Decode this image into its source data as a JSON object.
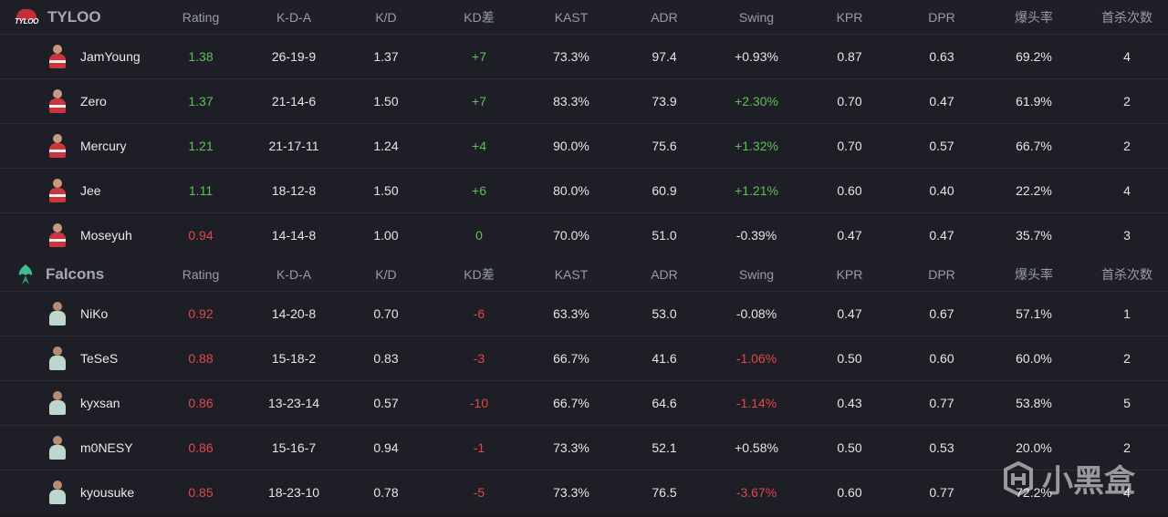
{
  "columns": [
    "Rating",
    "K-D-A",
    "K/D",
    "KD差",
    "KAST",
    "ADR",
    "Swing",
    "KPR",
    "DPR",
    "爆头率",
    "首杀次数"
  ],
  "teams": [
    {
      "name": "TYLOO",
      "logo_text": "TYLOO",
      "players": [
        {
          "name": "JamYoung",
          "rating": "1.38",
          "kda": "26-19-9",
          "kd": "1.37",
          "kddiff": "+7",
          "kast": "73.3%",
          "adr": "97.4",
          "swing": "+0.93%",
          "kpr": "0.87",
          "dpr": "0.63",
          "hs": "69.2%",
          "fk": "4"
        },
        {
          "name": "Zero",
          "rating": "1.37",
          "kda": "21-14-6",
          "kd": "1.50",
          "kddiff": "+7",
          "kast": "83.3%",
          "adr": "73.9",
          "swing": "+2.30%",
          "kpr": "0.70",
          "dpr": "0.47",
          "hs": "61.9%",
          "fk": "2"
        },
        {
          "name": "Mercury",
          "rating": "1.21",
          "kda": "21-17-11",
          "kd": "1.24",
          "kddiff": "+4",
          "kast": "90.0%",
          "adr": "75.6",
          "swing": "+1.32%",
          "kpr": "0.70",
          "dpr": "0.57",
          "hs": "66.7%",
          "fk": "2"
        },
        {
          "name": "Jee",
          "rating": "1.11",
          "kda": "18-12-8",
          "kd": "1.50",
          "kddiff": "+6",
          "kast": "80.0%",
          "adr": "60.9",
          "swing": "+1.21%",
          "kpr": "0.60",
          "dpr": "0.40",
          "hs": "22.2%",
          "fk": "4"
        },
        {
          "name": "Moseyuh",
          "rating": "0.94",
          "kda": "14-14-8",
          "kd": "1.00",
          "kddiff": "0",
          "kast": "70.0%",
          "adr": "51.0",
          "swing": "-0.39%",
          "kpr": "0.47",
          "dpr": "0.47",
          "hs": "35.7%",
          "fk": "3"
        }
      ]
    },
    {
      "name": "Falcons",
      "players": [
        {
          "name": "NiKo",
          "rating": "0.92",
          "kda": "14-20-8",
          "kd": "0.70",
          "kddiff": "-6",
          "kast": "63.3%",
          "adr": "53.0",
          "swing": "-0.08%",
          "kpr": "0.47",
          "dpr": "0.67",
          "hs": "57.1%",
          "fk": "1"
        },
        {
          "name": "TeSeS",
          "rating": "0.88",
          "kda": "15-18-2",
          "kd": "0.83",
          "kddiff": "-3",
          "kast": "66.7%",
          "adr": "41.6",
          "swing": "-1.06%",
          "kpr": "0.50",
          "dpr": "0.60",
          "hs": "60.0%",
          "fk": "2"
        },
        {
          "name": "kyxsan",
          "rating": "0.86",
          "kda": "13-23-14",
          "kd": "0.57",
          "kddiff": "-10",
          "kast": "66.7%",
          "adr": "64.6",
          "swing": "-1.14%",
          "kpr": "0.43",
          "dpr": "0.77",
          "hs": "53.8%",
          "fk": "5"
        },
        {
          "name": "m0NESY",
          "rating": "0.86",
          "kda": "15-16-7",
          "kd": "0.94",
          "kddiff": "-1",
          "kast": "73.3%",
          "adr": "52.1",
          "swing": "+0.58%",
          "kpr": "0.50",
          "dpr": "0.53",
          "hs": "20.0%",
          "fk": "2"
        },
        {
          "name": "kyousuke",
          "rating": "0.85",
          "kda": "18-23-10",
          "kd": "0.78",
          "kddiff": "-5",
          "kast": "73.3%",
          "adr": "76.5",
          "swing": "-3.67%",
          "kpr": "0.60",
          "dpr": "0.77",
          "hs": "72.2%",
          "fk": "4"
        }
      ]
    }
  ],
  "colors": {
    "positive": "#5fbf59",
    "negative": "#e0474a",
    "neutral": "#e6e6e6"
  },
  "watermark": {
    "text": "小黑盒"
  }
}
